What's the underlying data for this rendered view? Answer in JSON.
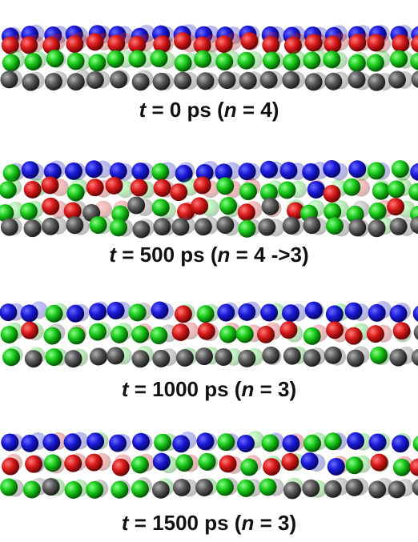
{
  "panels": [
    {
      "caption": [
        "t",
        " = 0 ps (",
        "n",
        " = 4)"
      ]
    },
    {
      "caption": [
        "t",
        " = 500 ps (",
        "n",
        " = 4 ->3)"
      ]
    },
    {
      "caption": [
        "t",
        " = 1000 ps (",
        "n",
        " = 3)"
      ]
    },
    {
      "caption": [
        "t",
        " = 1500 ps (",
        "n",
        " = 3)"
      ]
    }
  ]
}
